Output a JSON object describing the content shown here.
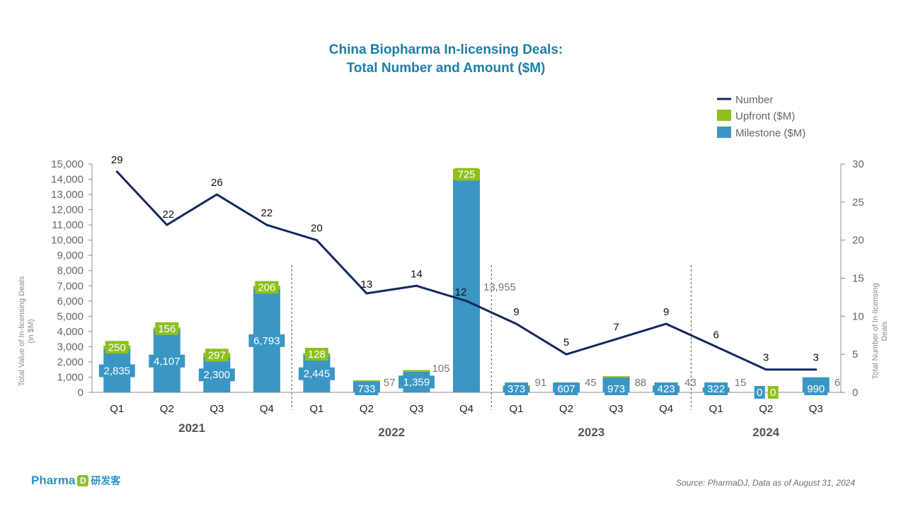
{
  "chart_data": {
    "type": "bar",
    "title_line1": "China Biopharma In-licensing Deals:",
    "title_line2": "Total Number and Amount ($M)",
    "ylabel_left": "Total Value of In-licensing Deals (in $M)",
    "ylabel_right": "Total Number of In-licensing Deals",
    "ylim_left": [
      0,
      15000
    ],
    "yticks_left": [
      "0",
      "1,000",
      "2,000",
      "3,000",
      "4,000",
      "5,000",
      "6,000",
      "7,000",
      "8,000",
      "9,000",
      "10,000",
      "11,000",
      "12,000",
      "13,000",
      "14,000",
      "15,000"
    ],
    "ylim_right": [
      0,
      30
    ],
    "yticks_right": [
      "0",
      "5",
      "10",
      "15",
      "20",
      "25",
      "30"
    ],
    "categories": [
      "Q1",
      "Q2",
      "Q3",
      "Q4",
      "Q1",
      "Q2",
      "Q3",
      "Q4",
      "Q1",
      "Q2",
      "Q3",
      "Q4",
      "Q1",
      "Q2",
      "Q3"
    ],
    "years": [
      {
        "label": "2021",
        "start": 0,
        "end": 3
      },
      {
        "label": "2022",
        "start": 4,
        "end": 7
      },
      {
        "label": "2023",
        "start": 8,
        "end": 11
      },
      {
        "label": "2024",
        "start": 12,
        "end": 14
      }
    ],
    "series": [
      {
        "name": "Milestone ($M)",
        "type": "bar",
        "color": "#3a96c4",
        "values": [
          2835,
          4107,
          2300,
          6793,
          2445,
          733,
          1359,
          13955,
          373,
          607,
          973,
          423,
          322,
          0,
          990
        ],
        "labels": [
          "2,835",
          "4,107",
          "2,300",
          "6,793",
          "2,445",
          "733",
          "1,359",
          "13,955",
          "373",
          "607",
          "973",
          "423",
          "322",
          "0",
          "990"
        ]
      },
      {
        "name": "Upfront ($M)",
        "type": "bar",
        "color": "#8fbf1f",
        "values": [
          250,
          156,
          297,
          206,
          128,
          57,
          105,
          725,
          91,
          45,
          88,
          43,
          15,
          0,
          6
        ],
        "labels": [
          "250",
          "156",
          "297",
          "206",
          "128",
          "57",
          "105",
          "725",
          "91",
          "45",
          "88",
          "43",
          "15",
          "0",
          "6"
        ]
      },
      {
        "name": "Number",
        "type": "line",
        "color": "#13285e",
        "values": [
          29,
          22,
          26,
          22,
          20,
          13,
          14,
          12,
          9,
          5,
          7,
          9,
          6,
          3,
          3
        ],
        "labels": [
          "29",
          "22",
          "26",
          "22",
          "20",
          "13",
          "14",
          "12",
          "9",
          "5",
          "7",
          "9",
          "6",
          "3",
          "3"
        ]
      }
    ],
    "legend_position": "top-right",
    "grid": false
  },
  "footer": {
    "brand": "Pharma",
    "brand_mark": "D",
    "brand_cn": "研发客",
    "source": "Source: PharmaDJ, Data as of August 31, 2024"
  }
}
